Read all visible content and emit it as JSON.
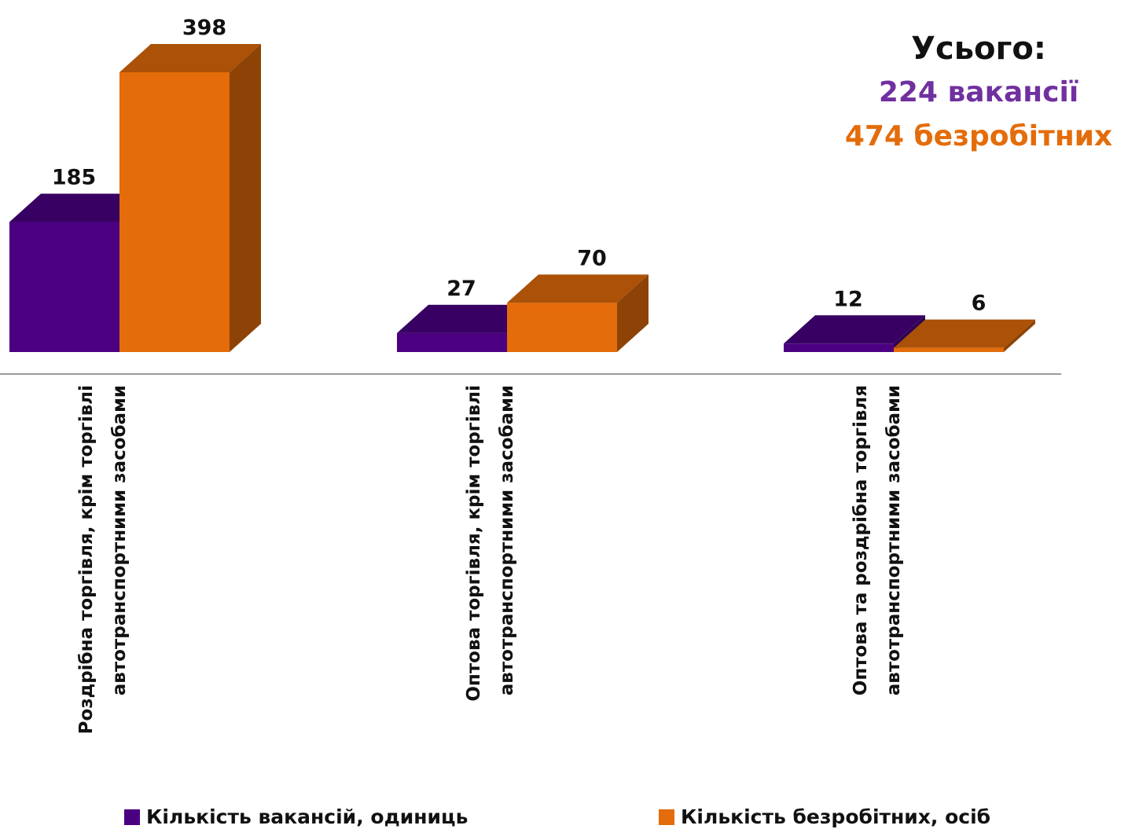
{
  "chart_data": {
    "type": "bar",
    "categories": [
      [
        "Роздрібна торгівля, крім торгівлі",
        "автотранспортними засобами"
      ],
      [
        "Оптова торгівля, крім торгівлі",
        "автотранспортними засобами"
      ],
      [
        "Оптова та роздрібна торгівля",
        "автотранспортними засобами"
      ]
    ],
    "series": [
      {
        "name": "Кількість вакансій, одиниць",
        "values": [
          185,
          27,
          12
        ],
        "color": "#4b0082"
      },
      {
        "name": "Кількість безробітних, осіб",
        "values": [
          398,
          70,
          6
        ],
        "color": "#e46c0a"
      }
    ],
    "ylim": [
      0,
      398
    ],
    "grid": false,
    "legend_position": "bottom",
    "style": "3d-bars"
  },
  "summary": {
    "header": "Усього:",
    "vacancies": "224 вакансії",
    "unemployed": "474 безробітних",
    "vacancies_color": "#7030a0",
    "unemployed_color": "#e46c0a"
  }
}
